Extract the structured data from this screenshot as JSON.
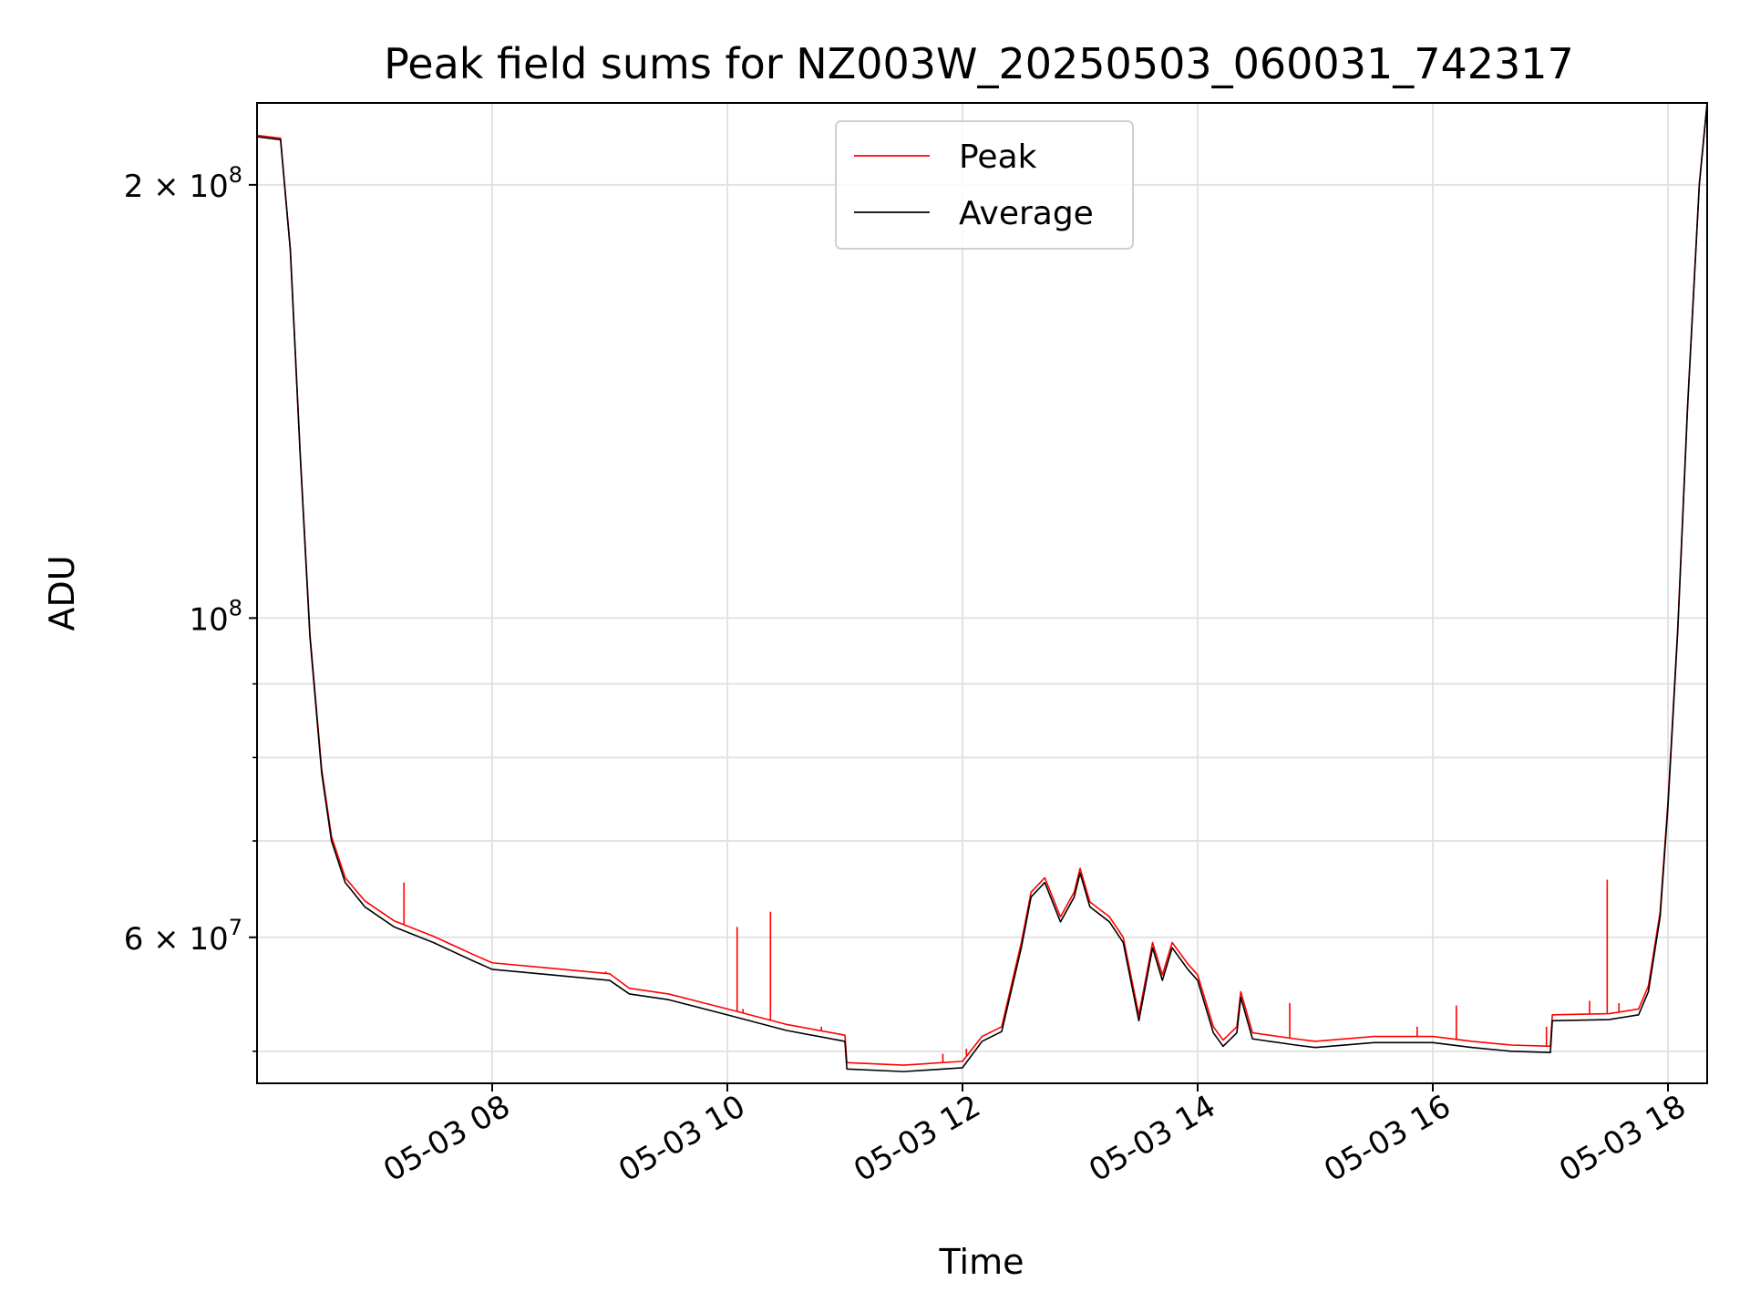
{
  "chart_data": {
    "type": "line",
    "title": "Peak field sums for NZ003W_20250503_060031_742317",
    "xlabel": "Time",
    "ylabel": "ADU",
    "yscale": "log",
    "xlim": [
      "05-03 06:00",
      "05-03 18:20"
    ],
    "ylim": [
      47500000,
      228000000
    ],
    "x_ticks": [
      "05-03 08",
      "05-03 10",
      "05-03 12",
      "05-03 14",
      "05-03 16",
      "05-03 18"
    ],
    "y_tick_labels": [
      {
        "value": 200000000,
        "base": "2 × 10",
        "exp": "8"
      },
      {
        "value": 100000000,
        "base": "10",
        "exp": "8"
      },
      {
        "value": 60000000,
        "base": "6 × 10",
        "exp": "7"
      }
    ],
    "y_minor_ticks": [
      50000000,
      70000000,
      80000000,
      90000000
    ],
    "grid": true,
    "legend": {
      "position": "top-center",
      "entries": [
        "Peak",
        "Average"
      ]
    },
    "colors": {
      "Peak": "#ff0000",
      "Average": "#000000"
    },
    "series": [
      {
        "name": "Average",
        "color": "#000000",
        "points": [
          [
            "05-03 06:00",
            216000000
          ],
          [
            "05-03 06:12",
            215000000
          ],
          [
            "05-03 06:17",
            180000000
          ],
          [
            "05-03 06:22",
            130000000
          ],
          [
            "05-03 06:27",
            97000000
          ],
          [
            "05-03 06:33",
            78000000
          ],
          [
            "05-03 06:38",
            70000000
          ],
          [
            "05-03 06:45",
            65500000
          ],
          [
            "05-03 06:55",
            63000000
          ],
          [
            "05-03 07:10",
            61000000
          ],
          [
            "05-03 07:30",
            59500000
          ],
          [
            "05-03 07:50",
            57800000
          ],
          [
            "05-03 08:00",
            57000000
          ],
          [
            "05-03 08:30",
            56500000
          ],
          [
            "05-03 09:00",
            56000000
          ],
          [
            "05-03 09:10",
            54800000
          ],
          [
            "05-03 09:30",
            54300000
          ],
          [
            "05-03 10:00",
            53000000
          ],
          [
            "05-03 10:30",
            51700000
          ],
          [
            "05-03 11:00",
            50800000
          ],
          [
            "05-03 11:01",
            48600000
          ],
          [
            "05-03 11:30",
            48400000
          ],
          [
            "05-03 12:00",
            48700000
          ],
          [
            "05-03 12:10",
            50800000
          ],
          [
            "05-03 12:20",
            51600000
          ],
          [
            "05-03 12:30",
            59000000
          ],
          [
            "05-03 12:35",
            64000000
          ],
          [
            "05-03 12:42",
            65500000
          ],
          [
            "05-03 12:50",
            61500000
          ],
          [
            "05-03 12:57",
            64000000
          ],
          [
            "05-03 13:00",
            66500000
          ],
          [
            "05-03 13:05",
            63000000
          ],
          [
            "05-03 13:15",
            61500000
          ],
          [
            "05-03 13:22",
            59500000
          ],
          [
            "05-03 13:30",
            52500000
          ],
          [
            "05-03 13:37",
            59000000
          ],
          [
            "05-03 13:42",
            56000000
          ],
          [
            "05-03 13:47",
            59000000
          ],
          [
            "05-03 13:55",
            57000000
          ],
          [
            "05-03 14:00",
            56000000
          ],
          [
            "05-03 14:08",
            51500000
          ],
          [
            "05-03 14:13",
            50400000
          ],
          [
            "05-03 14:20",
            51500000
          ],
          [
            "05-03 14:22",
            54500000
          ],
          [
            "05-03 14:28",
            51000000
          ],
          [
            "05-03 14:50",
            50500000
          ],
          [
            "05-03 15:00",
            50300000
          ],
          [
            "05-03 15:30",
            50700000
          ],
          [
            "05-03 16:00",
            50700000
          ],
          [
            "05-03 16:20",
            50300000
          ],
          [
            "05-03 16:40",
            50000000
          ],
          [
            "05-03 17:00",
            49900000
          ],
          [
            "05-03 17:01",
            52500000
          ],
          [
            "05-03 17:30",
            52600000
          ],
          [
            "05-03 17:45",
            53000000
          ],
          [
            "05-03 17:50",
            55000000
          ],
          [
            "05-03 17:56",
            62000000
          ],
          [
            "05-03 18:00",
            74000000
          ],
          [
            "05-03 18:05",
            98000000
          ],
          [
            "05-03 18:10",
            140000000
          ],
          [
            "05-03 18:16",
            200000000
          ],
          [
            "05-03 18:20",
            228000000
          ]
        ]
      },
      {
        "name": "Peak",
        "color": "#ff0000",
        "points": [
          [
            "05-03 06:00",
            216500000
          ],
          [
            "05-03 06:12",
            215500000
          ],
          [
            "05-03 06:17",
            180500000
          ],
          [
            "05-03 06:22",
            130500000
          ],
          [
            "05-03 06:27",
            97500000
          ],
          [
            "05-03 06:33",
            78500000
          ],
          [
            "05-03 06:38",
            70500000
          ],
          [
            "05-03 06:45",
            66000000
          ],
          [
            "05-03 06:55",
            63600000
          ],
          [
            "05-03 07:10",
            61600000
          ],
          [
            "05-03 07:30",
            60100000
          ],
          [
            "05-03 07:50",
            58400000
          ],
          [
            "05-03 08:00",
            57600000
          ],
          [
            "05-03 08:30",
            57100000
          ],
          [
            "05-03 09:00",
            56600000
          ],
          [
            "05-03 09:10",
            55300000
          ],
          [
            "05-03 09:30",
            54800000
          ],
          [
            "05-03 10:00",
            53500000
          ],
          [
            "05-03 10:30",
            52200000
          ],
          [
            "05-03 11:00",
            51300000
          ],
          [
            "05-03 11:01",
            49100000
          ],
          [
            "05-03 11:30",
            48900000
          ],
          [
            "05-03 12:00",
            49200000
          ],
          [
            "05-03 12:10",
            51200000
          ],
          [
            "05-03 12:20",
            52000000
          ],
          [
            "05-03 12:30",
            59500000
          ],
          [
            "05-03 12:35",
            64500000
          ],
          [
            "05-03 12:42",
            66000000
          ],
          [
            "05-03 12:50",
            62000000
          ],
          [
            "05-03 12:57",
            64500000
          ],
          [
            "05-03 13:00",
            67000000
          ],
          [
            "05-03 13:05",
            63500000
          ],
          [
            "05-03 13:15",
            62000000
          ],
          [
            "05-03 13:22",
            60000000
          ],
          [
            "05-03 13:30",
            53000000
          ],
          [
            "05-03 13:37",
            59500000
          ],
          [
            "05-03 13:42",
            56500000
          ],
          [
            "05-03 13:47",
            59500000
          ],
          [
            "05-03 13:55",
            57500000
          ],
          [
            "05-03 14:00",
            56500000
          ],
          [
            "05-03 14:08",
            52000000
          ],
          [
            "05-03 14:13",
            50900000
          ],
          [
            "05-03 14:20",
            52000000
          ],
          [
            "05-03 14:22",
            55000000
          ],
          [
            "05-03 14:28",
            51500000
          ],
          [
            "05-03 14:50",
            51000000
          ],
          [
            "05-03 15:00",
            50800000
          ],
          [
            "05-03 15:30",
            51200000
          ],
          [
            "05-03 16:00",
            51200000
          ],
          [
            "05-03 16:20",
            50800000
          ],
          [
            "05-03 16:40",
            50500000
          ],
          [
            "05-03 17:00",
            50400000
          ],
          [
            "05-03 17:01",
            53000000
          ],
          [
            "05-03 17:30",
            53100000
          ],
          [
            "05-03 17:45",
            53500000
          ],
          [
            "05-03 17:50",
            55500000
          ],
          [
            "05-03 17:56",
            62500000
          ],
          [
            "05-03 18:00",
            74500000
          ],
          [
            "05-03 18:05",
            98500000
          ],
          [
            "05-03 18:10",
            140500000
          ],
          [
            "05-03 18:16",
            200500000
          ],
          [
            "05-03 18:20",
            228000000
          ]
        ],
        "spikes": [
          [
            "05-03 07:15",
            65500000
          ],
          [
            "05-03 08:58",
            56800000
          ],
          [
            "05-03 10:05",
            61000000
          ],
          [
            "05-03 10:08",
            53500000
          ],
          [
            "05-03 10:22",
            62500000
          ],
          [
            "05-03 10:48",
            52000000
          ],
          [
            "05-03 11:50",
            49800000
          ],
          [
            "05-03 12:02",
            50200000
          ],
          [
            "05-03 14:47",
            54000000
          ],
          [
            "05-03 15:52",
            52000000
          ],
          [
            "05-03 16:12",
            53800000
          ],
          [
            "05-03 16:58",
            52000000
          ],
          [
            "05-03 17:20",
            54200000
          ],
          [
            "05-03 17:29",
            65800000
          ],
          [
            "05-03 17:35",
            54000000
          ]
        ]
      }
    ]
  }
}
